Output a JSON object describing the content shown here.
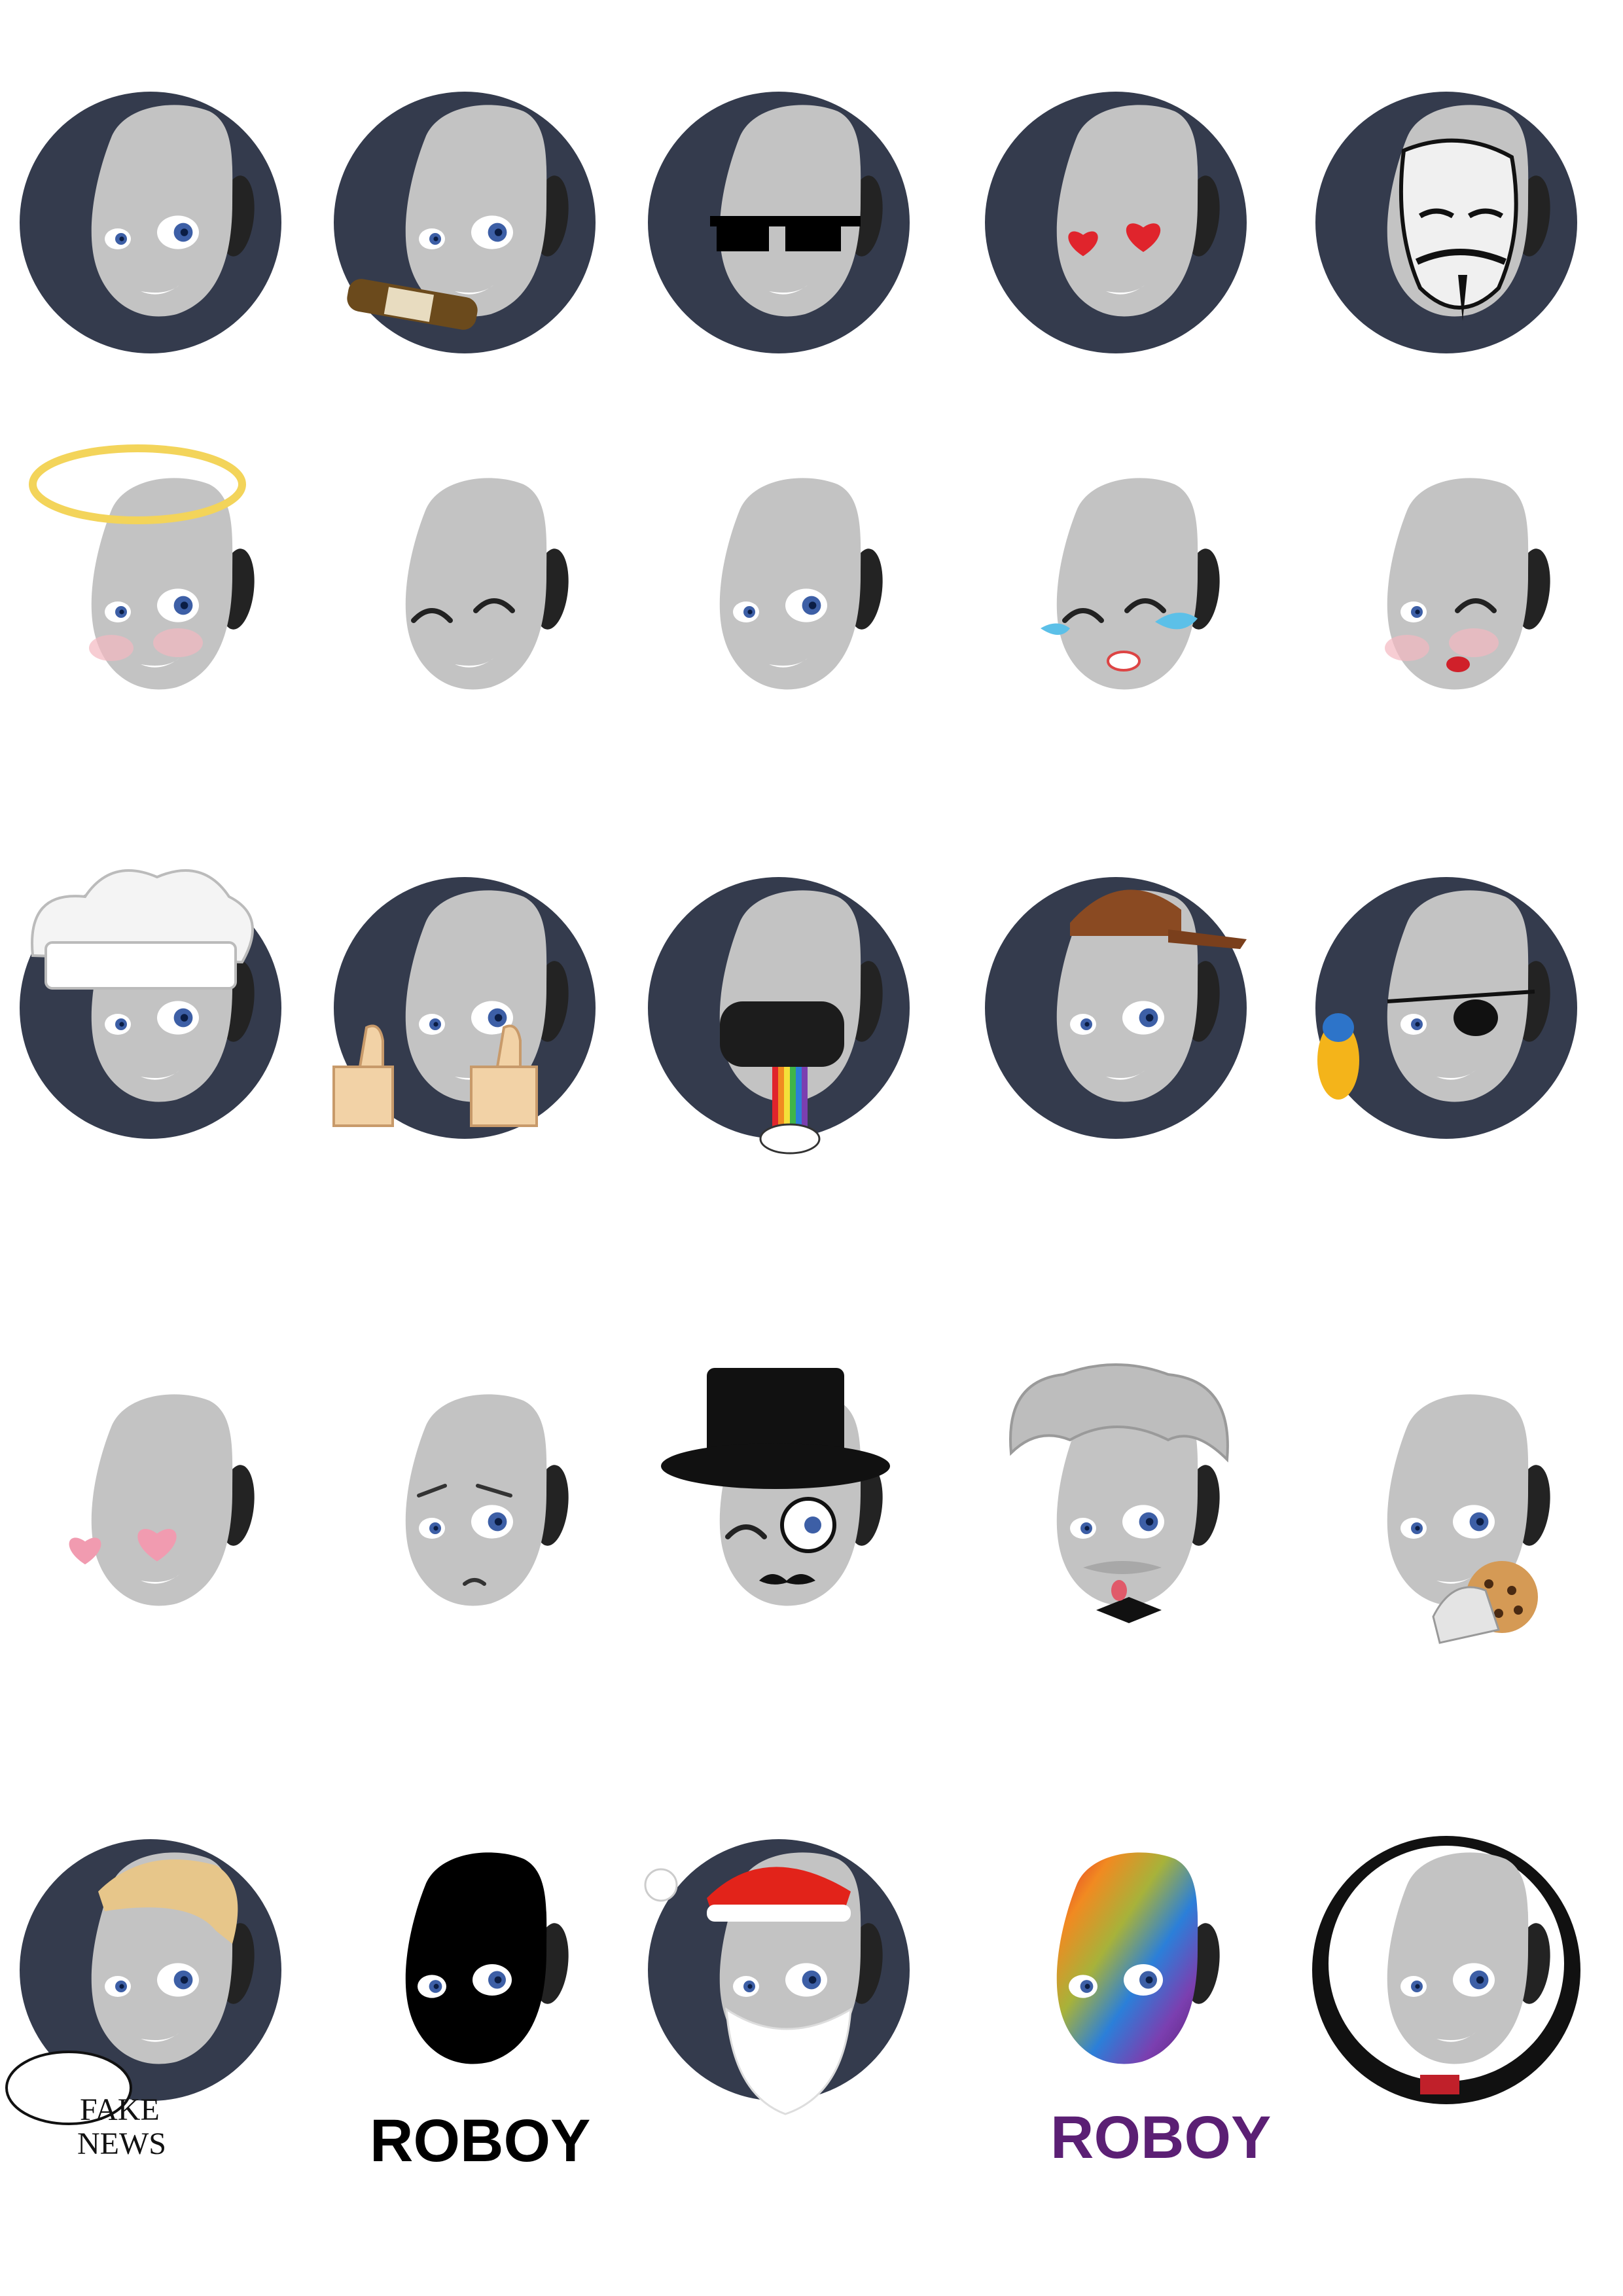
{
  "sheet": {
    "title": "",
    "stickers": [
      {
        "name": "roboy-plain",
        "row": 1,
        "col": 1
      },
      {
        "name": "roboy-beer",
        "row": 1,
        "col": 2
      },
      {
        "name": "roboy-pixel-sunglasses",
        "row": 1,
        "col": 3
      },
      {
        "name": "roboy-heart-eyes",
        "row": 1,
        "col": 4
      },
      {
        "name": "roboy-guy-fawkes-mask",
        "row": 1,
        "col": 5
      },
      {
        "name": "roboy-angel-halo",
        "row": 2,
        "col": 1
      },
      {
        "name": "roboy-wink",
        "row": 2,
        "col": 2
      },
      {
        "name": "roboy-grin",
        "row": 2,
        "col": 3
      },
      {
        "name": "roboy-tears-of-joy",
        "row": 2,
        "col": 4
      },
      {
        "name": "roboy-kiss-wink",
        "row": 2,
        "col": 5
      },
      {
        "name": "roboy-chef-hat",
        "row": 3,
        "col": 1
      },
      {
        "name": "roboy-thumbs-up",
        "row": 3,
        "col": 2
      },
      {
        "name": "roboy-vr-rainbow",
        "row": 3,
        "col": 3
      },
      {
        "name": "roboy-snapback-cap",
        "row": 3,
        "col": 4
      },
      {
        "name": "roboy-pirate-parrot",
        "row": 3,
        "col": 5
      },
      {
        "name": "roboy-blush-hearts",
        "row": 4,
        "col": 1
      },
      {
        "name": "roboy-worried",
        "row": 4,
        "col": 2
      },
      {
        "name": "roboy-gentleman-top-hat",
        "row": 4,
        "col": 3
      },
      {
        "name": "roboy-einstein",
        "row": 4,
        "col": 4
      },
      {
        "name": "roboy-cookie",
        "row": 4,
        "col": 5
      },
      {
        "name": "roboy-trump-hair",
        "row": 5,
        "col": 1
      },
      {
        "name": "roboy-black-silhouette",
        "row": 5,
        "col": 2
      },
      {
        "name": "roboy-santa",
        "row": 5,
        "col": 3
      },
      {
        "name": "roboy-rainbow-silhouette",
        "row": 5,
        "col": 4
      },
      {
        "name": "roboy-astronaut-helmet",
        "row": 5,
        "col": 5
      }
    ]
  },
  "bubble": {
    "line1": "FAKE",
    "line2": "NEWS"
  },
  "logo_black": {
    "text": "ROBOY"
  },
  "logo_purple": {
    "text": "ROBOY"
  },
  "colors": {
    "circle": "#343b4d",
    "face": "#c3c3c3",
    "ear": "#232323",
    "iris": "#3d5fa6",
    "logo_black": "#000000",
    "logo_purple": "#5b1f74",
    "heart": "#e0242c",
    "halo": "#f3d45a",
    "tear": "#5cc0e8",
    "lips": "#d0202a",
    "blush": "#f3b8c0"
  }
}
